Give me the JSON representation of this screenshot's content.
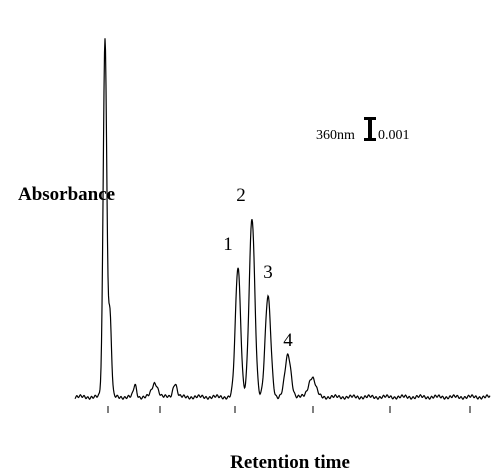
{
  "chart_data": {
    "type": "chromatogram",
    "y_label": "Absorbance",
    "x_label": "Retention time",
    "peak_labels": [
      "1",
      "2",
      "3",
      "4"
    ],
    "scale_bar": {
      "wavelength": "360nm",
      "value": "0.001"
    }
  }
}
